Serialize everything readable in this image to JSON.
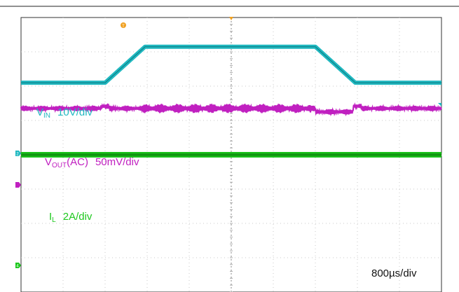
{
  "chart_data": {
    "type": "line",
    "title": "",
    "timebase": "800µs/div",
    "grid": true,
    "divisions": {
      "x": 10,
      "y": 8
    },
    "markers": {
      "trigger": "T",
      "channels": [
        "2",
        "4"
      ]
    },
    "channels": [
      {
        "name": "V_IN",
        "label_main": "V",
        "label_sub": "IN",
        "label_scale": "10V/div",
        "color": "#20b8c0",
        "unit": "div",
        "x": [
          0,
          2.0,
          2.95,
          7.0,
          7.95,
          10
        ],
        "y": [
          2.1,
          2.1,
          3.15,
          3.15,
          2.1,
          2.1
        ]
      },
      {
        "name": "V_OUT(AC)",
        "label_main": "V",
        "label_sub": "OUT",
        "label_suffix": "(AC)",
        "label_scale": "50mV/div",
        "color": "#c020c0",
        "unit": "div",
        "baseline_div": 1.35,
        "ripple_amplitude_div": 0.08
      },
      {
        "name": "I_L",
        "label_main": "I",
        "label_sub": "L",
        "label_scale": "2A/div",
        "color": "#1ec81e",
        "unit": "div",
        "baseline_div": 0.0
      }
    ]
  }
}
